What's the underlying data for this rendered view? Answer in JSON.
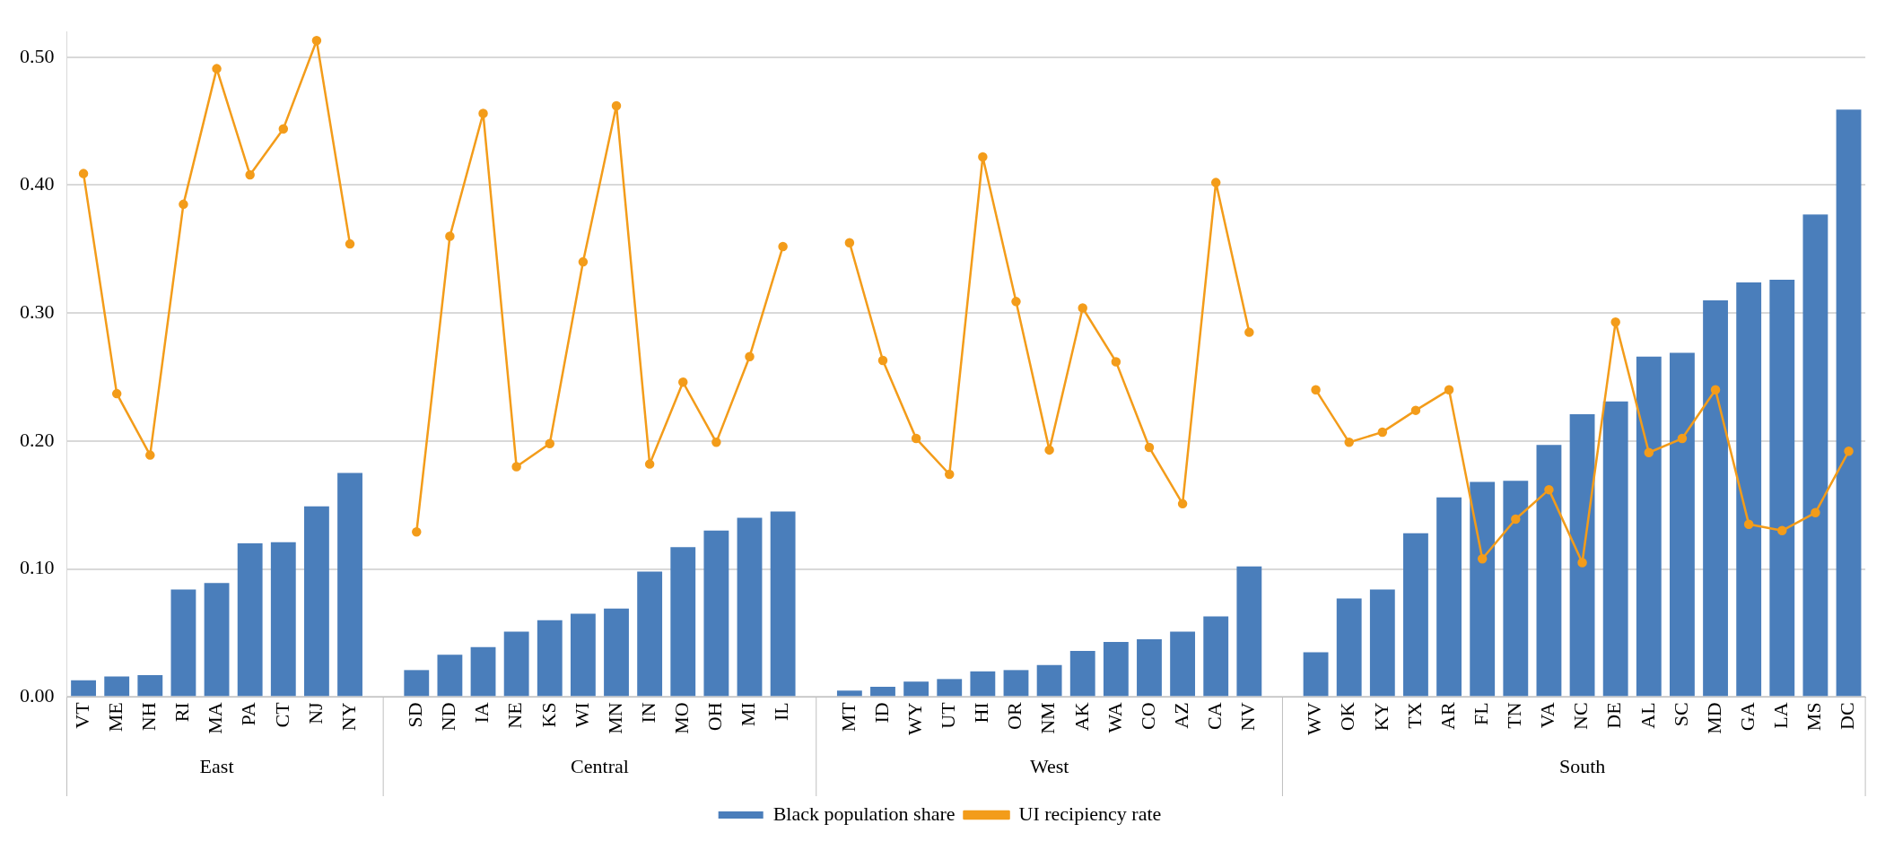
{
  "chart_data": {
    "type": "bar",
    "categories": [
      "VT",
      "ME",
      "NH",
      "RI",
      "MA",
      "PA",
      "CT",
      "NJ",
      "NY",
      null,
      "SD",
      "ND",
      "IA",
      "NE",
      "KS",
      "WI",
      "MN",
      "IN",
      "MO",
      "OH",
      "MI",
      "IL",
      null,
      "MT",
      "ID",
      "WY",
      "UT",
      "HI",
      "OR",
      "NM",
      "AK",
      "WA",
      "CO",
      "AZ",
      "CA",
      "NV",
      null,
      "WV",
      "OK",
      "KY",
      "TX",
      "AR",
      "FL",
      "TN",
      "VA",
      "NC",
      "DE",
      "AL",
      "SC",
      "MD",
      "GA",
      "LA",
      "MS",
      "DC"
    ],
    "series": [
      {
        "name": "Black population share",
        "color": "#4a7ebb",
        "values": [
          0.013,
          0.016,
          0.017,
          0.084,
          0.089,
          0.12,
          0.121,
          0.149,
          0.175,
          null,
          0.021,
          0.033,
          0.039,
          0.051,
          0.06,
          0.065,
          0.069,
          0.098,
          0.117,
          0.13,
          0.14,
          0.145,
          null,
          0.005,
          0.008,
          0.012,
          0.014,
          0.02,
          0.021,
          0.025,
          0.036,
          0.043,
          0.045,
          0.051,
          0.063,
          0.102,
          null,
          0.035,
          0.077,
          0.084,
          0.128,
          0.156,
          0.168,
          0.169,
          0.197,
          0.221,
          0.231,
          0.266,
          0.269,
          0.31,
          0.324,
          0.326,
          0.377,
          0.459
        ]
      },
      {
        "name": "UI recipiency rate",
        "type": "line",
        "color": "#f39c1a",
        "marker": "circle",
        "values": [
          0.409,
          0.237,
          0.189,
          0.385,
          0.491,
          0.408,
          0.444,
          0.513,
          0.354,
          null,
          0.129,
          0.36,
          0.456,
          0.18,
          0.198,
          0.34,
          0.462,
          0.182,
          0.246,
          0.199,
          0.266,
          0.352,
          null,
          0.355,
          0.263,
          0.202,
          0.174,
          0.422,
          0.309,
          0.193,
          0.304,
          0.262,
          0.195,
          0.151,
          0.402,
          0.285,
          null,
          0.24,
          0.199,
          0.207,
          0.224,
          0.24,
          0.108,
          0.139,
          0.162,
          0.105,
          0.293,
          0.191,
          0.202,
          0.24,
          0.135,
          0.13,
          0.144,
          0.192
        ]
      }
    ],
    "annotations": [
      "East",
      "Central",
      "West",
      "South"
    ],
    "ylim": [
      0,
      0.52
    ],
    "yticks": [
      {
        "value": 0,
        "label": "0.00"
      },
      {
        "value": 0.1,
        "label": "0.10"
      },
      {
        "value": 0.2,
        "label": "0.20"
      },
      {
        "value": 0.3,
        "label": "0.30"
      },
      {
        "value": 0.4,
        "label": "0.40"
      },
      {
        "value": 0.5,
        "label": "0.50"
      }
    ],
    "grid": "y",
    "legend": "bottom"
  }
}
